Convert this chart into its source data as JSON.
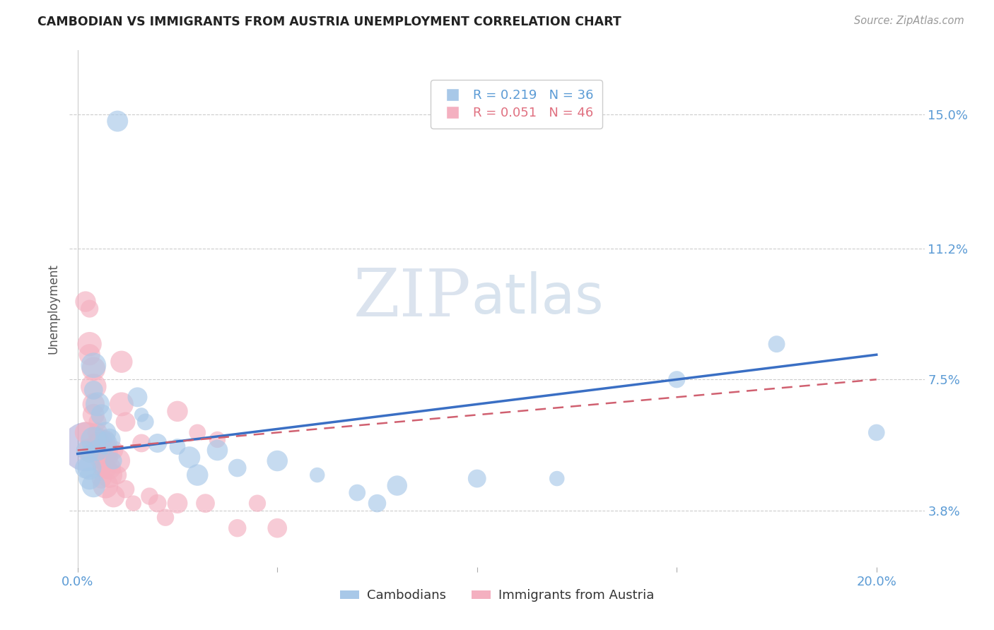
{
  "title": "CAMBODIAN VS IMMIGRANTS FROM AUSTRIA UNEMPLOYMENT CORRELATION CHART",
  "source": "Source: ZipAtlas.com",
  "ylabel": "Unemployment",
  "y_ticks": [
    0.038,
    0.075,
    0.112,
    0.15
  ],
  "y_tick_labels": [
    "3.8%",
    "7.5%",
    "11.2%",
    "15.0%"
  ],
  "xlim": [
    -0.002,
    0.212
  ],
  "ylim": [
    0.022,
    0.168
  ],
  "legend_entries": [
    {
      "label": "R = 0.219   N = 36",
      "color_text": "#5b9bd5"
    },
    {
      "label": "R = 0.051   N = 46",
      "color_text": "#e07080"
    }
  ],
  "blue_scatter": [
    [
      0.01,
      0.148
    ],
    [
      0.004,
      0.079
    ],
    [
      0.004,
      0.072
    ],
    [
      0.005,
      0.068
    ],
    [
      0.006,
      0.065
    ],
    [
      0.007,
      0.06
    ],
    [
      0.007,
      0.057
    ],
    [
      0.008,
      0.058
    ],
    [
      0.005,
      0.055
    ],
    [
      0.009,
      0.052
    ],
    [
      0.003,
      0.054
    ],
    [
      0.003,
      0.05
    ],
    [
      0.003,
      0.047
    ],
    [
      0.004,
      0.045
    ],
    [
      0.004,
      0.058
    ],
    [
      0.015,
      0.07
    ],
    [
      0.016,
      0.065
    ],
    [
      0.017,
      0.063
    ],
    [
      0.02,
      0.057
    ],
    [
      0.025,
      0.056
    ],
    [
      0.028,
      0.053
    ],
    [
      0.03,
      0.048
    ],
    [
      0.035,
      0.055
    ],
    [
      0.04,
      0.05
    ],
    [
      0.05,
      0.052
    ],
    [
      0.06,
      0.048
    ],
    [
      0.07,
      0.043
    ],
    [
      0.075,
      0.04
    ],
    [
      0.08,
      0.045
    ],
    [
      0.1,
      0.047
    ],
    [
      0.12,
      0.047
    ],
    [
      0.15,
      0.075
    ],
    [
      0.175,
      0.085
    ],
    [
      0.2,
      0.06
    ],
    [
      0.002,
      0.055
    ],
    [
      0.002,
      0.05
    ]
  ],
  "pink_scatter": [
    [
      0.003,
      0.095
    ],
    [
      0.003,
      0.085
    ],
    [
      0.003,
      0.082
    ],
    [
      0.004,
      0.078
    ],
    [
      0.004,
      0.073
    ],
    [
      0.004,
      0.068
    ],
    [
      0.004,
      0.065
    ],
    [
      0.005,
      0.063
    ],
    [
      0.005,
      0.06
    ],
    [
      0.005,
      0.057
    ],
    [
      0.005,
      0.055
    ],
    [
      0.006,
      0.053
    ],
    [
      0.006,
      0.058
    ],
    [
      0.006,
      0.05
    ],
    [
      0.006,
      0.047
    ],
    [
      0.007,
      0.055
    ],
    [
      0.007,
      0.058
    ],
    [
      0.007,
      0.05
    ],
    [
      0.007,
      0.045
    ],
    [
      0.008,
      0.053
    ],
    [
      0.008,
      0.05
    ],
    [
      0.008,
      0.048
    ],
    [
      0.009,
      0.055
    ],
    [
      0.009,
      0.042
    ],
    [
      0.01,
      0.052
    ],
    [
      0.01,
      0.048
    ],
    [
      0.011,
      0.08
    ],
    [
      0.011,
      0.068
    ],
    [
      0.012,
      0.063
    ],
    [
      0.012,
      0.044
    ],
    [
      0.014,
      0.04
    ],
    [
      0.016,
      0.057
    ],
    [
      0.018,
      0.042
    ],
    [
      0.02,
      0.04
    ],
    [
      0.022,
      0.036
    ],
    [
      0.025,
      0.066
    ],
    [
      0.025,
      0.04
    ],
    [
      0.03,
      0.06
    ],
    [
      0.032,
      0.04
    ],
    [
      0.035,
      0.058
    ],
    [
      0.04,
      0.033
    ],
    [
      0.045,
      0.04
    ],
    [
      0.05,
      0.033
    ],
    [
      0.002,
      0.097
    ],
    [
      0.002,
      0.06
    ],
    [
      0.003,
      0.055
    ]
  ],
  "blue_line_x": [
    0.0,
    0.2
  ],
  "blue_line_y": [
    0.054,
    0.082
  ],
  "pink_line_x": [
    0.0,
    0.2
  ],
  "pink_line_y": [
    0.055,
    0.075
  ],
  "blue_line_color": "#3a6fc4",
  "pink_line_color": "#d06070",
  "blue_scatter_color": "#a8c8e8",
  "pink_scatter_color": "#f4b0c0",
  "big_bubble_color": "#9090cc",
  "watermark_zip": "ZIP",
  "watermark_atlas": "atlas",
  "background_color": "#ffffff",
  "grid_color": "#cccccc"
}
